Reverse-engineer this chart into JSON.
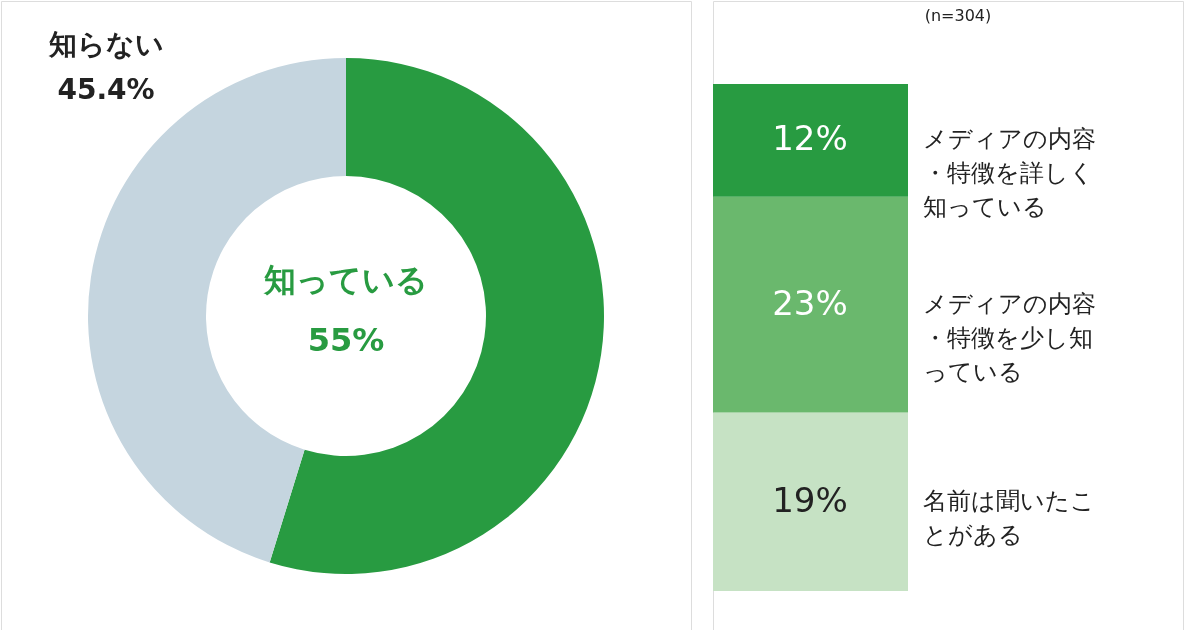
{
  "chart_data": [
    {
      "type": "donut",
      "categories": [
        "知っている",
        "知らない"
      ],
      "values": [
        55,
        45.4
      ],
      "colors": [
        "#289b41",
        "#c5d5df"
      ],
      "value_labels": [
        "55%",
        "45.4%"
      ]
    },
    {
      "type": "bar",
      "stacked": true,
      "categories": [
        null
      ],
      "annotations": [
        "(n=304)"
      ],
      "series": [
        {
          "name": "名前は聞いたことがある",
          "color": "#c6e2c4",
          "values": [
            19
          ],
          "value_labels": [
            "19%"
          ]
        },
        {
          "name": "メディアの内容・特徴を少し知っている",
          "color": "#6ab86d",
          "values": [
            23
          ],
          "value_labels": [
            "23%"
          ]
        },
        {
          "name": "メディアの内容・特徴を詳しく知っている",
          "color": "#289b41",
          "values": [
            12
          ],
          "value_labels": [
            "12%"
          ]
        }
      ]
    }
  ]
}
